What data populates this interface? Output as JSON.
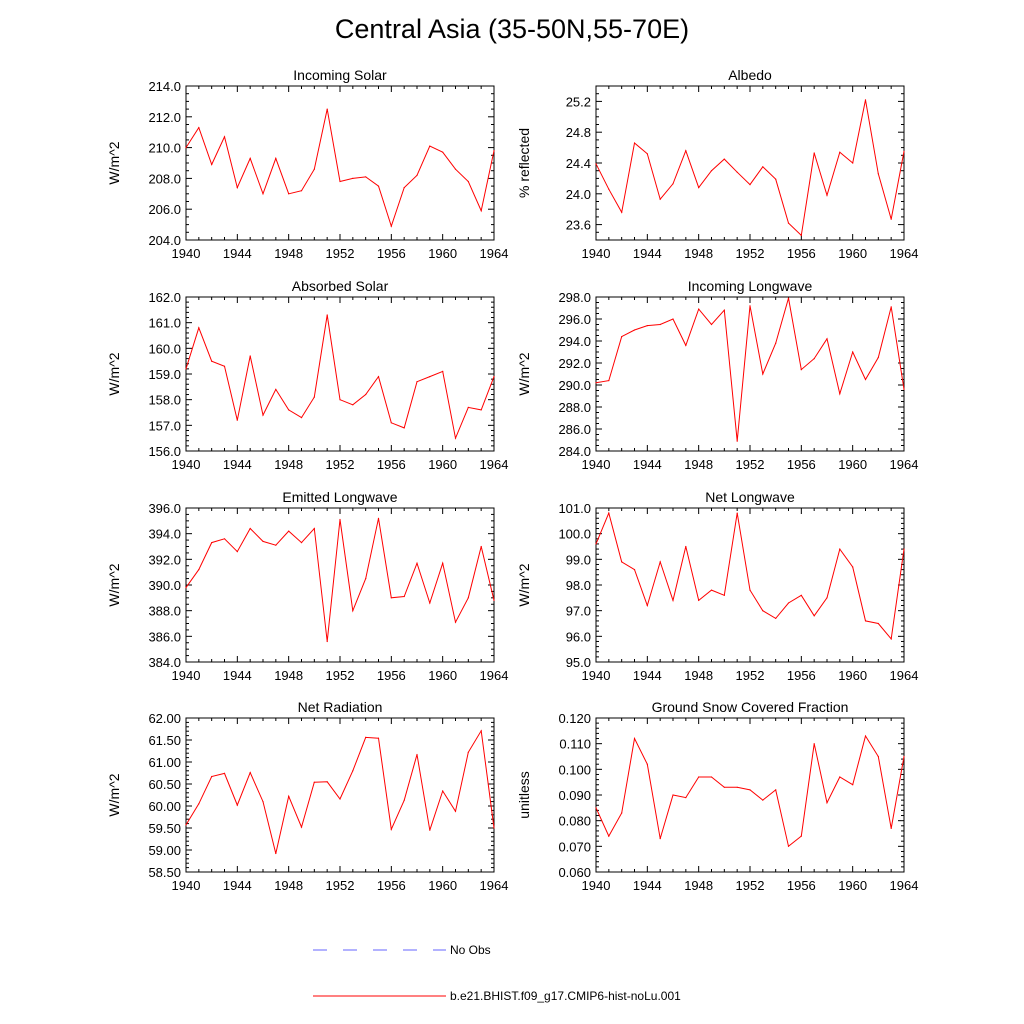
{
  "figure": {
    "title": "Central Asia (35-50N,55-70E)"
  },
  "colors": {
    "model_line": "#ff0000",
    "obs_line": "#6666ff",
    "axis": "#000000"
  },
  "legend": {
    "placement": "bottom-center",
    "entries": [
      {
        "label": "No Obs",
        "color": "#6666ff",
        "style": "dashed"
      },
      {
        "label": "b.e21.BHIST.f09_g17.CMIP6-hist-noLu.001",
        "color": "#ff0000",
        "style": "solid"
      }
    ]
  },
  "chart_data": [
    {
      "type": "line",
      "title": "Incoming Solar",
      "ylabel": "W/m^2",
      "xlim": [
        1940,
        1964
      ],
      "ylim": [
        204,
        214
      ],
      "xticks": [
        1940,
        1944,
        1948,
        1952,
        1956,
        1960,
        1964
      ],
      "yticks": [
        204,
        206,
        208,
        210,
        212,
        214
      ],
      "ytick_labels": [
        "204.0",
        "206.0",
        "208.0",
        "210.0",
        "212.0",
        "214.0"
      ],
      "y_minor_step": 0.5,
      "series": [
        {
          "name": "b.e21.BHIST.f09_g17.CMIP6-hist-noLu.001",
          "x": [
            1940,
            1941,
            1942,
            1943,
            1944,
            1945,
            1946,
            1947,
            1948,
            1949,
            1950,
            1951,
            1952,
            1953,
            1954,
            1955,
            1956,
            1957,
            1958,
            1959,
            1960,
            1961,
            1962,
            1963,
            1964
          ],
          "y": [
            210.0,
            211.3,
            208.9,
            210.7,
            207.4,
            209.3,
            207.0,
            209.3,
            207.0,
            207.2,
            208.6,
            212.5,
            207.8,
            208.0,
            208.1,
            207.5,
            204.9,
            207.4,
            208.2,
            210.1,
            209.7,
            208.6,
            207.8,
            205.9,
            209.8
          ]
        }
      ]
    },
    {
      "type": "line",
      "title": "Albedo",
      "ylabel": "% reflected",
      "xlim": [
        1940,
        1964
      ],
      "ylim": [
        23.4,
        25.4
      ],
      "xticks": [
        1940,
        1944,
        1948,
        1952,
        1956,
        1960,
        1964
      ],
      "yticks": [
        23.6,
        24.0,
        24.4,
        24.8,
        25.2
      ],
      "ytick_labels": [
        "23.6",
        "24.0",
        "24.4",
        "24.8",
        "25.2"
      ],
      "y_minor_step": 0.1,
      "series": [
        {
          "name": "b.e21.BHIST.f09_g17.CMIP6-hist-noLu.001",
          "x": [
            1940,
            1941,
            1942,
            1943,
            1944,
            1945,
            1946,
            1947,
            1948,
            1949,
            1950,
            1951,
            1952,
            1953,
            1954,
            1955,
            1956,
            1957,
            1958,
            1959,
            1960,
            1961,
            1962,
            1963,
            1964
          ],
          "y": [
            24.39,
            24.06,
            23.76,
            24.66,
            24.52,
            23.93,
            24.13,
            24.56,
            24.08,
            24.3,
            24.45,
            24.28,
            24.12,
            24.35,
            24.19,
            23.62,
            23.46,
            24.53,
            23.98,
            24.54,
            24.4,
            25.22,
            24.26,
            23.67,
            24.55
          ]
        }
      ]
    },
    {
      "type": "line",
      "title": "Absorbed Solar",
      "ylabel": "W/m^2",
      "xlim": [
        1940,
        1964
      ],
      "ylim": [
        156,
        162
      ],
      "xticks": [
        1940,
        1944,
        1948,
        1952,
        1956,
        1960,
        1964
      ],
      "yticks": [
        156,
        157,
        158,
        159,
        160,
        161,
        162
      ],
      "ytick_labels": [
        "156.0",
        "157.0",
        "158.0",
        "159.0",
        "160.0",
        "161.0",
        "162.0"
      ],
      "y_minor_step": 0.2,
      "series": [
        {
          "name": "b.e21.BHIST.f09_g17.CMIP6-hist-noLu.001",
          "x": [
            1940,
            1941,
            1942,
            1943,
            1944,
            1945,
            1946,
            1947,
            1948,
            1949,
            1950,
            1951,
            1952,
            1953,
            1954,
            1955,
            1956,
            1957,
            1958,
            1959,
            1960,
            1961,
            1962,
            1963,
            1964
          ],
          "y": [
            159.2,
            160.8,
            159.5,
            159.3,
            157.2,
            159.7,
            157.4,
            158.4,
            157.6,
            157.3,
            158.1,
            161.3,
            158.0,
            157.8,
            158.2,
            158.9,
            157.1,
            156.9,
            158.7,
            158.9,
            159.1,
            156.5,
            157.7,
            157.6,
            158.9
          ]
        }
      ]
    },
    {
      "type": "line",
      "title": "Incoming Longwave",
      "ylabel": "W/m^2",
      "xlim": [
        1940,
        1964
      ],
      "ylim": [
        284,
        298
      ],
      "xticks": [
        1940,
        1944,
        1948,
        1952,
        1956,
        1960,
        1964
      ],
      "yticks": [
        284,
        286,
        288,
        290,
        292,
        294,
        296,
        298
      ],
      "ytick_labels": [
        "284.0",
        "286.0",
        "288.0",
        "290.0",
        "292.0",
        "294.0",
        "296.0",
        "298.0"
      ],
      "y_minor_step": 0.5,
      "series": [
        {
          "name": "b.e21.BHIST.f09_g17.CMIP6-hist-noLu.001",
          "x": [
            1940,
            1941,
            1942,
            1943,
            1944,
            1945,
            1946,
            1947,
            1948,
            1949,
            1950,
            1951,
            1952,
            1953,
            1954,
            1955,
            1956,
            1957,
            1958,
            1959,
            1960,
            1961,
            1962,
            1963,
            1964
          ],
          "y": [
            290.2,
            290.4,
            294.4,
            295.0,
            295.4,
            295.5,
            296.0,
            293.6,
            296.9,
            295.5,
            296.8,
            284.9,
            297.2,
            291.0,
            293.8,
            297.9,
            291.4,
            292.4,
            294.2,
            289.2,
            293.0,
            290.5,
            292.5,
            297.1,
            289.6
          ]
        }
      ]
    },
    {
      "type": "line",
      "title": "Emitted Longwave",
      "ylabel": "W/m^2",
      "xlim": [
        1940,
        1964
      ],
      "ylim": [
        384,
        396
      ],
      "xticks": [
        1940,
        1944,
        1948,
        1952,
        1956,
        1960,
        1964
      ],
      "yticks": [
        384,
        386,
        388,
        390,
        392,
        394,
        396
      ],
      "ytick_labels": [
        "384.0",
        "386.0",
        "388.0",
        "390.0",
        "392.0",
        "394.0",
        "396.0"
      ],
      "y_minor_step": 0.5,
      "series": [
        {
          "name": "b.e21.BHIST.f09_g17.CMIP6-hist-noLu.001",
          "x": [
            1940,
            1941,
            1942,
            1943,
            1944,
            1945,
            1946,
            1947,
            1948,
            1949,
            1950,
            1951,
            1952,
            1953,
            1954,
            1955,
            1956,
            1957,
            1958,
            1959,
            1960,
            1961,
            1962,
            1963,
            1964
          ],
          "y": [
            389.8,
            391.2,
            393.3,
            393.6,
            392.6,
            394.4,
            393.4,
            393.1,
            394.2,
            393.3,
            394.4,
            385.6,
            395.1,
            388.0,
            390.5,
            395.2,
            389.0,
            389.1,
            391.7,
            388.6,
            391.7,
            387.1,
            389.0,
            393.0,
            388.8
          ]
        }
      ]
    },
    {
      "type": "line",
      "title": "Net Longwave",
      "ylabel": "W/m^2",
      "xlim": [
        1940,
        1964
      ],
      "ylim": [
        95,
        101
      ],
      "xticks": [
        1940,
        1944,
        1948,
        1952,
        1956,
        1960,
        1964
      ],
      "yticks": [
        95,
        96,
        97,
        98,
        99,
        100,
        101
      ],
      "ytick_labels": [
        "95.0",
        "96.0",
        "97.0",
        "98.0",
        "99.0",
        "100.0",
        "101.0"
      ],
      "y_minor_step": 0.2,
      "series": [
        {
          "name": "b.e21.BHIST.f09_g17.CMIP6-hist-noLu.001",
          "x": [
            1940,
            1941,
            1942,
            1943,
            1944,
            1945,
            1946,
            1947,
            1948,
            1949,
            1950,
            1951,
            1952,
            1953,
            1954,
            1955,
            1956,
            1957,
            1958,
            1959,
            1960,
            1961,
            1962,
            1963,
            1964
          ],
          "y": [
            99.6,
            100.8,
            98.9,
            98.6,
            97.2,
            98.9,
            97.4,
            99.5,
            97.4,
            97.8,
            97.6,
            100.8,
            97.8,
            97.0,
            96.7,
            97.3,
            97.6,
            96.8,
            97.5,
            99.4,
            98.7,
            96.6,
            96.5,
            95.9,
            99.4
          ]
        }
      ]
    },
    {
      "type": "line",
      "title": "Net Radiation",
      "ylabel": "W/m^2",
      "xlim": [
        1940,
        1964
      ],
      "ylim": [
        58.5,
        62.0
      ],
      "xticks": [
        1940,
        1944,
        1948,
        1952,
        1956,
        1960,
        1964
      ],
      "yticks": [
        58.5,
        59.0,
        59.5,
        60.0,
        60.5,
        61.0,
        61.5,
        62.0
      ],
      "ytick_labels": [
        "58.50",
        "59.00",
        "59.50",
        "60.00",
        "60.50",
        "61.00",
        "61.50",
        "62.00"
      ],
      "y_minor_step": 0.1,
      "series": [
        {
          "name": "b.e21.BHIST.f09_g17.CMIP6-hist-noLu.001",
          "x": [
            1940,
            1941,
            1942,
            1943,
            1944,
            1945,
            1946,
            1947,
            1948,
            1949,
            1950,
            1951,
            1952,
            1953,
            1954,
            1955,
            1956,
            1957,
            1958,
            1959,
            1960,
            1961,
            1962,
            1963,
            1964
          ],
          "y": [
            59.57,
            60.05,
            60.67,
            60.74,
            60.02,
            60.76,
            60.1,
            58.92,
            60.22,
            59.52,
            60.54,
            60.55,
            60.16,
            60.8,
            61.56,
            61.54,
            59.47,
            60.13,
            61.17,
            59.45,
            60.34,
            59.88,
            61.22,
            61.71,
            59.5
          ]
        }
      ]
    },
    {
      "type": "line",
      "title": "Ground Snow Covered Fraction",
      "ylabel": "unitless",
      "xlim": [
        1940,
        1964
      ],
      "ylim": [
        0.06,
        0.12
      ],
      "xticks": [
        1940,
        1944,
        1948,
        1952,
        1956,
        1960,
        1964
      ],
      "yticks": [
        0.06,
        0.07,
        0.08,
        0.09,
        0.1,
        0.11,
        0.12
      ],
      "ytick_labels": [
        "0.060",
        "0.070",
        "0.080",
        "0.090",
        "0.100",
        "0.110",
        "0.120"
      ],
      "y_minor_step": 0.002,
      "series": [
        {
          "name": "b.e21.BHIST.f09_g17.CMIP6-hist-noLu.001",
          "x": [
            1940,
            1941,
            1942,
            1943,
            1944,
            1945,
            1946,
            1947,
            1948,
            1949,
            1950,
            1951,
            1952,
            1953,
            1954,
            1955,
            1956,
            1957,
            1958,
            1959,
            1960,
            1961,
            1962,
            1963,
            1964
          ],
          "y": [
            0.085,
            0.074,
            0.083,
            0.112,
            0.102,
            0.073,
            0.09,
            0.089,
            0.097,
            0.097,
            0.093,
            0.093,
            0.092,
            0.088,
            0.092,
            0.07,
            0.074,
            0.11,
            0.087,
            0.097,
            0.094,
            0.113,
            0.105,
            0.077,
            0.105
          ]
        }
      ]
    }
  ]
}
